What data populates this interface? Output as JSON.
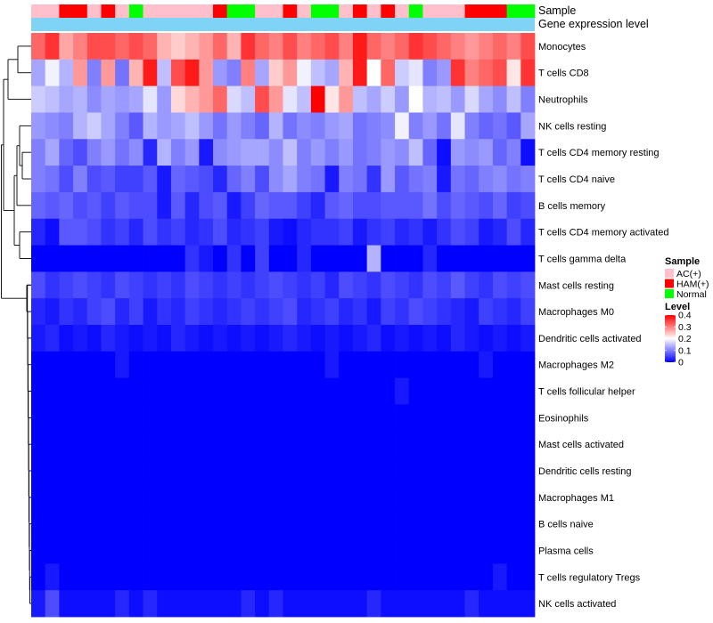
{
  "chart_data": {
    "type": "heatmap",
    "annotation_labels": [
      "Sample",
      "Gene expression level"
    ],
    "sample_groups": [
      "AC",
      "AC",
      "HAM",
      "HAM",
      "AC",
      "HAM",
      "AC",
      "Normal",
      "AC",
      "AC",
      "AC",
      "AC",
      "AC",
      "HAM",
      "Normal",
      "Normal",
      "AC",
      "AC",
      "HAM",
      "AC",
      "Normal",
      "Normal",
      "AC",
      "HAM",
      "AC",
      "HAM",
      "AC",
      "Normal",
      "AC",
      "AC",
      "AC",
      "HAM",
      "HAM",
      "HAM",
      "Normal",
      "Normal"
    ],
    "rows": [
      "Monocytes",
      "T cells CD8",
      "Neutrophils",
      "NK cells resting",
      "T cells CD4 memory resting",
      "T cells CD4 naive",
      "B cells memory",
      "T cells CD4 memory activated",
      "T cells gamma delta",
      "Mast cells resting",
      "Macrophages M0",
      "Dendritic cells activated",
      "Macrophages M2",
      "T cells follicular helper",
      "Eosinophils",
      "Mast cells activated",
      "Dendritic cells resting",
      "Macrophages M1",
      "B cells naive",
      "Plasma cells",
      "T cells regulatory  Tregs",
      "NK cells activated"
    ],
    "values": [
      [
        0.32,
        0.36,
        0.27,
        0.3,
        0.34,
        0.34,
        0.32,
        0.34,
        0.32,
        0.26,
        0.24,
        0.26,
        0.28,
        0.32,
        0.26,
        0.36,
        0.32,
        0.3,
        0.34,
        0.3,
        0.32,
        0.34,
        0.3,
        0.38,
        0.32,
        0.3,
        0.32,
        0.36,
        0.34,
        0.32,
        0.3,
        0.28,
        0.3,
        0.32,
        0.3,
        0.34
      ],
      [
        0.13,
        0.19,
        0.14,
        0.28,
        0.1,
        0.28,
        0.09,
        0.26,
        0.38,
        0.15,
        0.34,
        0.38,
        0.28,
        0.12,
        0.1,
        0.3,
        0.13,
        0.24,
        0.28,
        0.19,
        0.15,
        0.13,
        0.26,
        0.38,
        0.2,
        0.32,
        0.16,
        0.18,
        0.1,
        0.12,
        0.36,
        0.3,
        0.32,
        0.34,
        0.22,
        0.36
      ],
      [
        0.16,
        0.15,
        0.13,
        0.14,
        0.11,
        0.13,
        0.12,
        0.13,
        0.18,
        0.12,
        0.23,
        0.26,
        0.28,
        0.32,
        0.17,
        0.15,
        0.34,
        0.28,
        0.18,
        0.15,
        0.4,
        0.22,
        0.28,
        0.15,
        0.13,
        0.16,
        0.12,
        0.2,
        0.14,
        0.15,
        0.12,
        0.17,
        0.13,
        0.11,
        0.15,
        0.1
      ],
      [
        0.12,
        0.11,
        0.1,
        0.14,
        0.16,
        0.13,
        0.1,
        0.07,
        0.14,
        0.12,
        0.13,
        0.15,
        0.12,
        0.09,
        0.12,
        0.1,
        0.08,
        0.14,
        0.09,
        0.11,
        0.1,
        0.12,
        0.13,
        0.09,
        0.1,
        0.11,
        0.19,
        0.1,
        0.12,
        0.09,
        0.18,
        0.1,
        0.08,
        0.09,
        0.07,
        0.13
      ],
      [
        0.1,
        0.13,
        0.08,
        0.06,
        0.1,
        0.12,
        0.09,
        0.11,
        0.03,
        0.14,
        0.1,
        0.12,
        0.02,
        0.11,
        0.12,
        0.13,
        0.13,
        0.11,
        0.15,
        0.1,
        0.12,
        0.1,
        0.12,
        0.09,
        0.1,
        0.12,
        0.11,
        0.15,
        0.08,
        0.01,
        0.12,
        0.11,
        0.12,
        0.08,
        0.1,
        0.01
      ],
      [
        0.1,
        0.09,
        0.06,
        0.1,
        0.06,
        0.07,
        0.05,
        0.05,
        0.07,
        0.02,
        0.08,
        0.07,
        0.06,
        0.03,
        0.08,
        0.1,
        0.06,
        0.11,
        0.13,
        0.1,
        0.09,
        0.02,
        0.1,
        0.09,
        0.04,
        0.12,
        0.07,
        0.09,
        0.1,
        0.02,
        0.09,
        0.08,
        0.1,
        0.11,
        0.09,
        0.1
      ],
      [
        0.08,
        0.07,
        0.08,
        0.06,
        0.07,
        0.05,
        0.07,
        0.06,
        0.06,
        0.02,
        0.07,
        0.03,
        0.06,
        0.07,
        0.02,
        0.05,
        0.08,
        0.07,
        0.07,
        0.05,
        0.03,
        0.07,
        0.08,
        0.06,
        0.06,
        0.07,
        0.07,
        0.07,
        0.09,
        0.06,
        0.08,
        0.07,
        0.06,
        0.08,
        0.05,
        0.06
      ],
      [
        0.03,
        0.01,
        0.07,
        0.07,
        0.06,
        0.04,
        0.05,
        0.03,
        0.06,
        0.04,
        0.05,
        0.03,
        0.04,
        0.06,
        0.03,
        0.04,
        0.05,
        0.02,
        0.01,
        0.03,
        0.04,
        0.04,
        0.05,
        0.02,
        0.04,
        0.05,
        0.03,
        0.04,
        0.02,
        0.04,
        0.06,
        0.05,
        0.02,
        0.03,
        0.06,
        0.03
      ],
      [
        0.0,
        0.0,
        0.0,
        0.0,
        0.0,
        0.0,
        0.0,
        0.0,
        0.0,
        0.0,
        0.0,
        0.04,
        0.02,
        0.0,
        0.04,
        0.0,
        0.05,
        0.0,
        0.0,
        0.03,
        0.0,
        0.0,
        0.0,
        0.0,
        0.14,
        0.0,
        0.0,
        0.0,
        0.03,
        0.0,
        0.0,
        0.0,
        0.0,
        0.0,
        0.0,
        0.0
      ],
      [
        0.06,
        0.04,
        0.05,
        0.06,
        0.05,
        0.04,
        0.06,
        0.05,
        0.04,
        0.05,
        0.04,
        0.06,
        0.05,
        0.04,
        0.05,
        0.04,
        0.05,
        0.06,
        0.05,
        0.04,
        0.05,
        0.03,
        0.06,
        0.05,
        0.04,
        0.06,
        0.05,
        0.04,
        0.06,
        0.05,
        0.07,
        0.05,
        0.04,
        0.06,
        0.05,
        0.06
      ],
      [
        0.03,
        0.02,
        0.04,
        0.03,
        0.05,
        0.06,
        0.03,
        0.05,
        0.02,
        0.04,
        0.03,
        0.05,
        0.04,
        0.03,
        0.04,
        0.05,
        0.04,
        0.05,
        0.06,
        0.03,
        0.04,
        0.05,
        0.03,
        0.04,
        0.02,
        0.05,
        0.04,
        0.06,
        0.05,
        0.04,
        0.03,
        0.02,
        0.05,
        0.04,
        0.03,
        0.05
      ],
      [
        0.02,
        0.03,
        0.01,
        0.02,
        0.01,
        0.03,
        0.02,
        0.01,
        0.02,
        0.01,
        0.03,
        0.02,
        0.01,
        0.02,
        0.01,
        0.02,
        0.01,
        0.02,
        0.03,
        0.02,
        0.01,
        0.02,
        0.01,
        0.02,
        0.03,
        0.01,
        0.02,
        0.01,
        0.02,
        0.01,
        0.03,
        0.02,
        0.01,
        0.02,
        0.01,
        0.02
      ],
      [
        0.0,
        0.0,
        0.0,
        0.0,
        0.0,
        0.0,
        0.02,
        0.0,
        0.0,
        0.0,
        0.0,
        0.0,
        0.0,
        0.0,
        0.0,
        0.0,
        0.0,
        0.0,
        0.0,
        0.0,
        0.0,
        0.02,
        0.0,
        0.0,
        0.0,
        0.0,
        0.0,
        0.0,
        0.0,
        0.0,
        0.0,
        0.0,
        0.02,
        0.0,
        0.0,
        0.0
      ],
      [
        0.0,
        0.0,
        0.0,
        0.0,
        0.0,
        0.0,
        0.0,
        0.0,
        0.0,
        0.0,
        0.0,
        0.0,
        0.0,
        0.0,
        0.0,
        0.0,
        0.0,
        0.0,
        0.0,
        0.0,
        0.0,
        0.0,
        0.0,
        0.0,
        0.0,
        0.0,
        0.02,
        0.0,
        0.0,
        0.0,
        0.0,
        0.0,
        0.0,
        0.0,
        0.0,
        0.0
      ],
      [
        0.0,
        0.0,
        0.0,
        0.0,
        0.0,
        0.0,
        0.0,
        0.0,
        0.0,
        0.0,
        0.0,
        0.0,
        0.0,
        0.0,
        0.0,
        0.0,
        0.0,
        0.0,
        0.0,
        0.0,
        0.0,
        0.0,
        0.0,
        0.0,
        0.0,
        0.0,
        0.0,
        0.0,
        0.0,
        0.0,
        0.0,
        0.0,
        0.0,
        0.0,
        0.0,
        0.0
      ],
      [
        0.0,
        0.0,
        0.0,
        0.0,
        0.0,
        0.0,
        0.0,
        0.0,
        0.0,
        0.0,
        0.0,
        0.0,
        0.0,
        0.0,
        0.0,
        0.0,
        0.0,
        0.0,
        0.0,
        0.0,
        0.0,
        0.0,
        0.0,
        0.0,
        0.0,
        0.0,
        0.0,
        0.0,
        0.0,
        0.0,
        0.0,
        0.0,
        0.0,
        0.0,
        0.0,
        0.0
      ],
      [
        0.0,
        0.0,
        0.0,
        0.0,
        0.0,
        0.0,
        0.0,
        0.0,
        0.0,
        0.0,
        0.0,
        0.0,
        0.0,
        0.0,
        0.0,
        0.0,
        0.0,
        0.0,
        0.0,
        0.0,
        0.0,
        0.0,
        0.0,
        0.0,
        0.0,
        0.0,
        0.0,
        0.0,
        0.0,
        0.0,
        0.0,
        0.0,
        0.0,
        0.0,
        0.0,
        0.0
      ],
      [
        0.0,
        0.0,
        0.0,
        0.0,
        0.0,
        0.0,
        0.0,
        0.0,
        0.0,
        0.0,
        0.0,
        0.0,
        0.0,
        0.0,
        0.0,
        0.0,
        0.0,
        0.0,
        0.0,
        0.0,
        0.0,
        0.0,
        0.0,
        0.0,
        0.0,
        0.0,
        0.0,
        0.0,
        0.0,
        0.0,
        0.0,
        0.0,
        0.0,
        0.0,
        0.0,
        0.0
      ],
      [
        0.0,
        0.0,
        0.0,
        0.0,
        0.0,
        0.0,
        0.0,
        0.0,
        0.0,
        0.0,
        0.0,
        0.0,
        0.0,
        0.0,
        0.0,
        0.0,
        0.0,
        0.0,
        0.0,
        0.0,
        0.0,
        0.0,
        0.0,
        0.0,
        0.0,
        0.0,
        0.0,
        0.0,
        0.0,
        0.0,
        0.0,
        0.0,
        0.0,
        0.0,
        0.0,
        0.0
      ],
      [
        0.0,
        0.0,
        0.0,
        0.0,
        0.0,
        0.0,
        0.0,
        0.0,
        0.0,
        0.0,
        0.0,
        0.0,
        0.0,
        0.0,
        0.0,
        0.0,
        0.0,
        0.0,
        0.0,
        0.0,
        0.0,
        0.0,
        0.0,
        0.0,
        0.0,
        0.0,
        0.0,
        0.0,
        0.0,
        0.0,
        0.0,
        0.0,
        0.0,
        0.0,
        0.0,
        0.0
      ],
      [
        0.0,
        0.02,
        0.0,
        0.0,
        0.0,
        0.0,
        0.0,
        0.0,
        0.0,
        0.0,
        0.0,
        0.0,
        0.0,
        0.0,
        0.0,
        0.0,
        0.0,
        0.0,
        0.0,
        0.0,
        0.0,
        0.0,
        0.0,
        0.0,
        0.0,
        0.0,
        0.0,
        0.0,
        0.0,
        0.0,
        0.0,
        0.0,
        0.0,
        0.02,
        0.0,
        0.0
      ],
      [
        0.02,
        0.06,
        0.01,
        0.01,
        0.01,
        0.01,
        0.03,
        0.01,
        0.03,
        0.01,
        0.01,
        0.01,
        0.01,
        0.01,
        0.01,
        0.03,
        0.01,
        0.03,
        0.01,
        0.01,
        0.01,
        0.01,
        0.01,
        0.01,
        0.03,
        0.01,
        0.01,
        0.01,
        0.01,
        0.01,
        0.01,
        0.03,
        0.01,
        0.01,
        0.01,
        0.01
      ]
    ],
    "color_scale": {
      "min": 0,
      "mid": 0.2,
      "max": 0.4,
      "low_color": "#0000ff",
      "mid_color": "#ffffff",
      "high_color": "#ff0000"
    },
    "expression_bar_color": "#7fd4f5",
    "legend": {
      "sample_title": "Sample",
      "sample_items": [
        {
          "key": "AC",
          "label": "AC(+)",
          "color": "#ffc0cb"
        },
        {
          "key": "HAM",
          "label": "HAM(+)",
          "color": "#ff0000"
        },
        {
          "key": "Normal",
          "label": "Normal",
          "color": "#00ff00"
        }
      ],
      "level_title": "Level",
      "level_ticks": [
        0.4,
        0.3,
        0.2,
        0.1,
        0
      ],
      "level_tick_labels": [
        "0.4",
        "0.3",
        "0.2",
        "0.1",
        "0"
      ]
    },
    "dendrogram": "hierarchical clustering of rows"
  }
}
